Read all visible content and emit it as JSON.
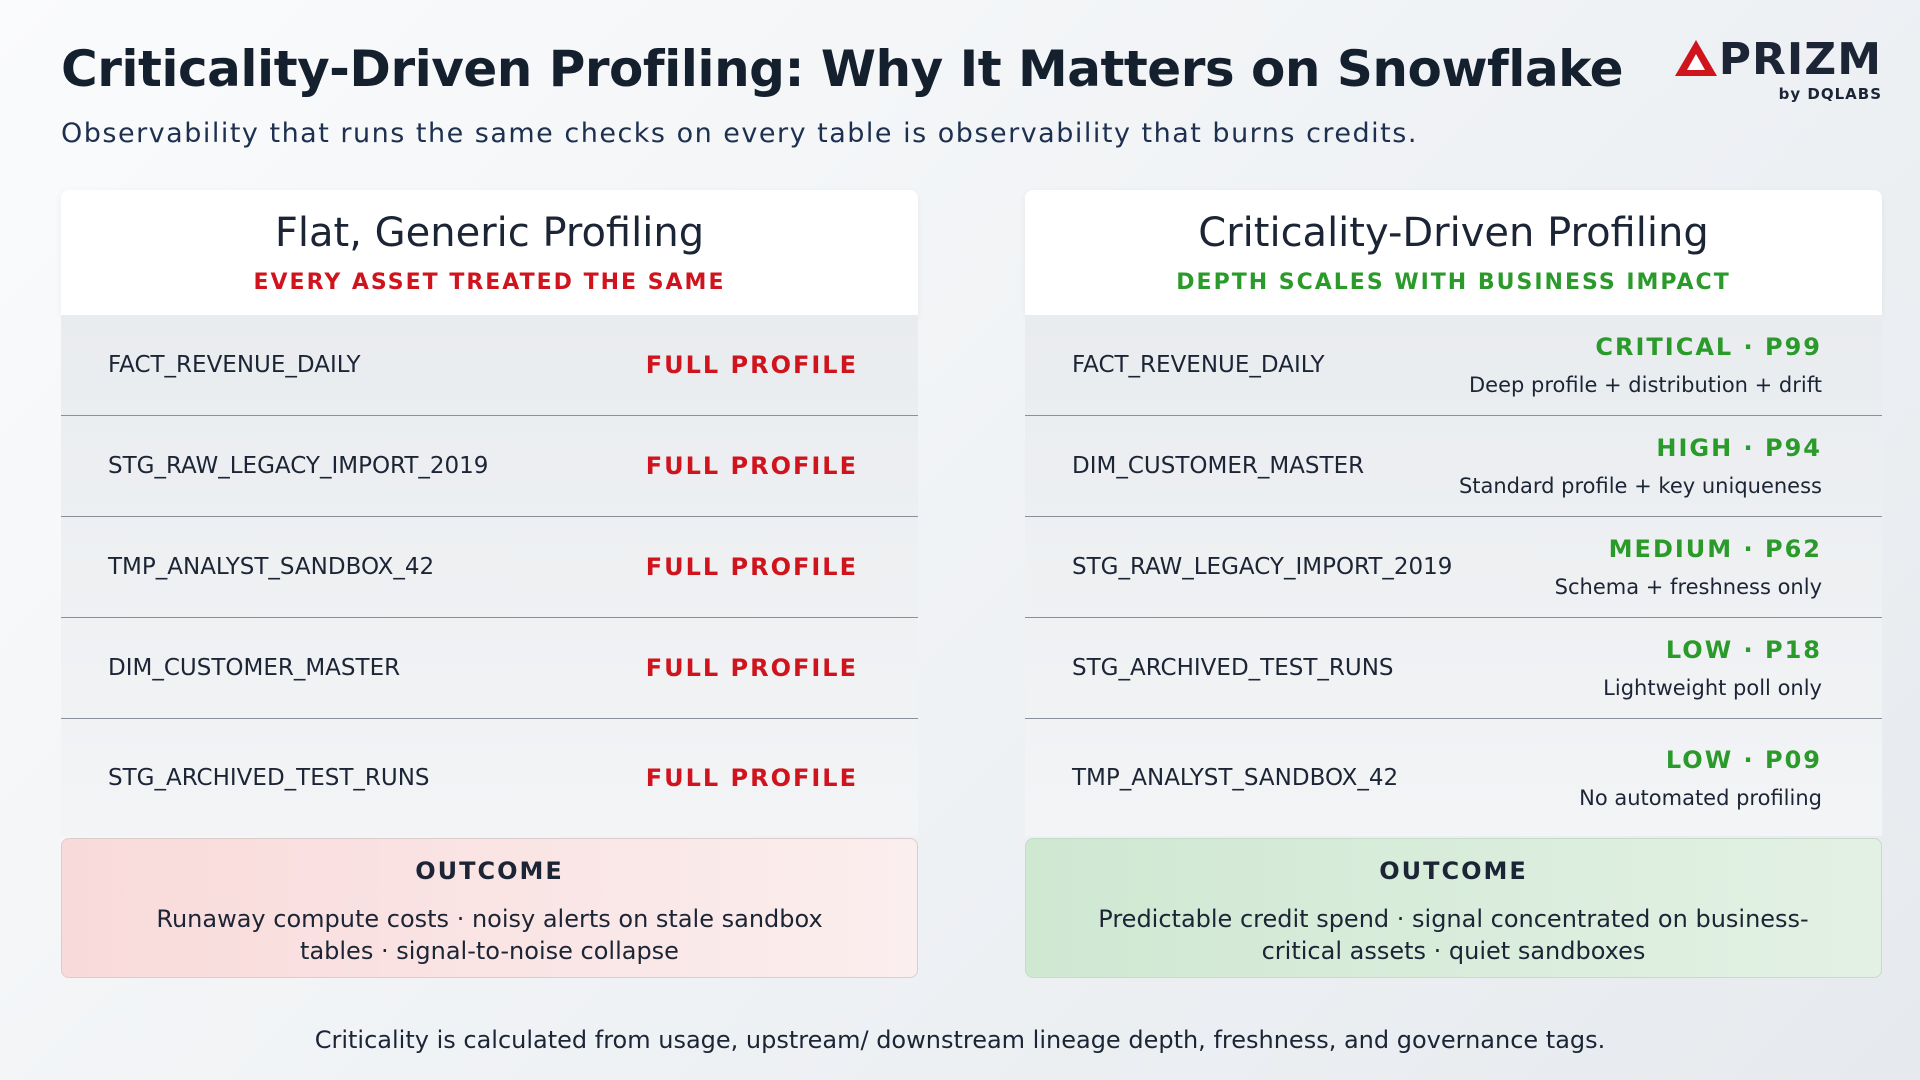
{
  "header": {
    "title": "Criticality-Driven Profiling: Why It Matters on Snowflake",
    "subtitle": "Observability that runs the same checks on every table is observability that burns credits.",
    "logo": {
      "name": "PRIZM",
      "by": "by DQLABS"
    }
  },
  "left": {
    "title": "Flat, Generic Profiling",
    "subtitle": "EVERY ASSET TREATED THE SAME",
    "rows": [
      {
        "table": "FACT_REVENUE_DAILY",
        "label": "FULL PROFILE"
      },
      {
        "table": "STG_RAW_LEGACY_IMPORT_2019",
        "label": "FULL PROFILE"
      },
      {
        "table": "TMP_ANALYST_SANDBOX_42",
        "label": "FULL PROFILE"
      },
      {
        "table": "DIM_CUSTOMER_MASTER",
        "label": "FULL PROFILE"
      },
      {
        "table": "STG_ARCHIVED_TEST_RUNS",
        "label": "FULL PROFILE"
      }
    ],
    "outcome": {
      "title": "OUTCOME",
      "text": "Runaway compute costs · noisy alerts on stale sandbox tables · signal-to-noise collapse"
    }
  },
  "right": {
    "title": "Criticality-Driven Profiling",
    "subtitle": "DEPTH SCALES WITH BUSINESS IMPACT",
    "rows": [
      {
        "table": "FACT_REVENUE_DAILY",
        "level": "CRITICAL · P99",
        "detail": "Deep profile + distribution + drift"
      },
      {
        "table": "DIM_CUSTOMER_MASTER",
        "level": "HIGH · P94",
        "detail": "Standard profile + key uniqueness"
      },
      {
        "table": "STG_RAW_LEGACY_IMPORT_2019",
        "level": "MEDIUM · P62",
        "detail": "Schema + freshness only"
      },
      {
        "table": "STG_ARCHIVED_TEST_RUNS",
        "level": "LOW · P18",
        "detail": "Lightweight poll only"
      },
      {
        "table": "TMP_ANALYST_SANDBOX_42",
        "level": "LOW · P09",
        "detail": "No automated profiling"
      }
    ],
    "outcome": {
      "title": "OUTCOME",
      "text": "Predictable credit spend · signal concentrated on business-critical assets · quiet sandboxes"
    }
  },
  "footer": "Criticality is calculated from usage, upstream/ downstream lineage depth, freshness, and governance tags."
}
